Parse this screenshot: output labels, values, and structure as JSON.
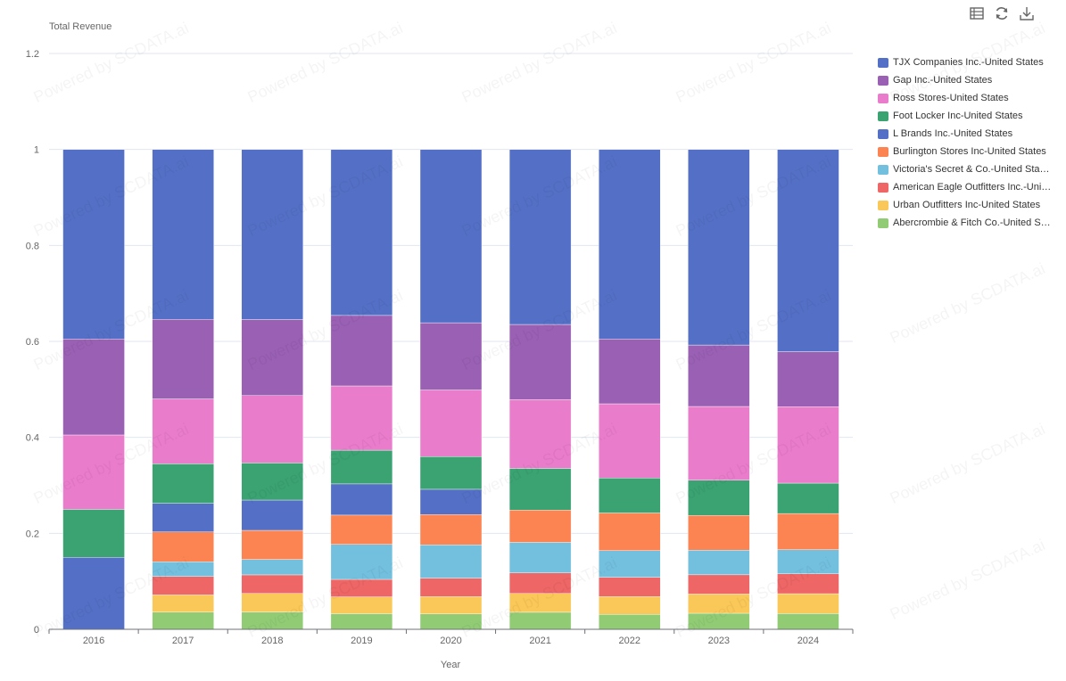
{
  "toolbar": {
    "data_view_icon": "data-view-icon",
    "refresh_icon": "refresh-icon",
    "download_icon": "download-icon"
  },
  "watermark_text": "Powered by SCDATA.ai",
  "chart_data": {
    "type": "bar",
    "stacked": true,
    "normalized": true,
    "ylabel": "Total Revenue",
    "xlabel": "Year",
    "ylim": [
      0,
      1.2
    ],
    "yticks": [
      "0",
      "0.2",
      "0.4",
      "0.6",
      "0.8",
      "1",
      "1.2"
    ],
    "categories": [
      "2016",
      "2017",
      "2018",
      "2019",
      "2020",
      "2021",
      "2022",
      "2023",
      "2024"
    ],
    "legend_position": "right",
    "grid": true,
    "series": [
      {
        "name": "TJX Companies Inc.-United States",
        "color": "#5470c6",
        "values": [
          0.395,
          0.267,
          0.275,
          0.266,
          0.281,
          0.298,
          0.342,
          0.366,
          0.386
        ]
      },
      {
        "name": "Gap Inc.-United States",
        "color": "#9a60b4",
        "values": [
          0.2,
          0.125,
          0.123,
          0.113,
          0.109,
          0.128,
          0.117,
          0.115,
          0.105
        ]
      },
      {
        "name": "Ross Stores-United States",
        "color": "#ea7ccc",
        "values": [
          0.155,
          0.102,
          0.109,
          0.103,
          0.108,
          0.117,
          0.134,
          0.138,
          0.146
        ]
      },
      {
        "name": "Foot Locker Inc-United States",
        "color": "#3ba272",
        "values": [
          0.1,
          0.062,
          0.06,
          0.054,
          0.053,
          0.071,
          0.063,
          0.066,
          0.058
        ]
      },
      {
        "name": "L Brands Inc.-United States",
        "color": "#5470c6",
        "values": [
          0.15,
          0.045,
          0.049,
          0.05,
          0.041,
          0.0,
          0.0,
          0.0,
          0.0
        ]
      },
      {
        "name": "Burlington Stores Inc-United States",
        "color": "#fc8452",
        "values": [
          0.0,
          0.047,
          0.047,
          0.047,
          0.049,
          0.055,
          0.068,
          0.065,
          0.069
        ]
      },
      {
        "name": "Victoria's Secret & Co.-United States",
        "color": "#73c0de",
        "values": [
          0.0,
          0.023,
          0.025,
          0.056,
          0.054,
          0.052,
          0.048,
          0.046,
          0.046
        ]
      },
      {
        "name": "American Eagle Outfitters Inc.-United States",
        "color": "#ee6666",
        "values": [
          0.0,
          0.029,
          0.03,
          0.028,
          0.03,
          0.035,
          0.035,
          0.036,
          0.038
        ]
      },
      {
        "name": "Urban Outfitters Inc-United States",
        "color": "#fac858",
        "values": [
          0.0,
          0.027,
          0.03,
          0.027,
          0.028,
          0.032,
          0.032,
          0.036,
          0.038
        ]
      },
      {
        "name": "Abercrombie & Fitch Co.-United States",
        "color": "#91cc75",
        "values": [
          0.0,
          0.027,
          0.028,
          0.025,
          0.025,
          0.029,
          0.027,
          0.03,
          0.03
        ]
      }
    ]
  }
}
